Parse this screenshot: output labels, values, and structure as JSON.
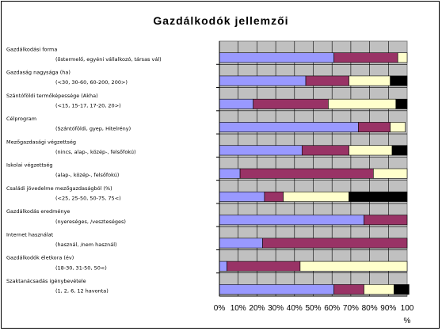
{
  "chart_data": {
    "type": "bar",
    "stacked": true,
    "orientation": "horizontal",
    "title": "Gazdálkodók jellemzői",
    "xlabel": "%",
    "xlim": [
      0,
      100
    ],
    "x_ticks": [
      "0%",
      "10%",
      "20%",
      "30%",
      "40%",
      "50%",
      "60%",
      "70%",
      "80%",
      "90%",
      "100"
    ],
    "grid": true,
    "segment_colors": [
      "#9999ff",
      "#993366",
      "#ffffcc",
      "#000000"
    ],
    "categories": [
      {
        "label": "Gazdálkodási forma",
        "sublabel": "(õstermelő, egyéni vállalkozó, társas vál)",
        "values": [
          61,
          34,
          5,
          0
        ]
      },
      {
        "label": "Gazdaság nagysága (ha)",
        "sublabel": "(<30, 30-60, 60-200, 200>)",
        "values": [
          46,
          23,
          22,
          9
        ]
      },
      {
        "label": "Szántóföldi termőképessége (Akha)",
        "sublabel": "(<15, 15-17, 17-20, 20>)",
        "values": [
          18,
          40,
          36,
          6
        ]
      },
      {
        "label": "Célprogram",
        "sublabel": "(Szántóföldi, gyep, Hitelrény)",
        "values": [
          74,
          17,
          8,
          0
        ]
      },
      {
        "label": "Mezőgazdasági végzettség",
        "sublabel": "(nincs, alap-, közép-, felsőfokú)",
        "values": [
          44,
          25,
          23,
          8
        ]
      },
      {
        "label": "Iskolai végzettség",
        "sublabel": "(alap-, közép-, felsőfokú)",
        "values": [
          11,
          71,
          18,
          0
        ]
      },
      {
        "label": "Családi jövedelme mezőgazdaságból (%)",
        "sublabel": "(<25, 25-50, 50-75, 75<)",
        "values": [
          24,
          10,
          35,
          31
        ]
      },
      {
        "label": "Gazdálkodás eredménye",
        "sublabel": "(nyereséges, /veszteséges)",
        "values": [
          77,
          23,
          0,
          0
        ]
      },
      {
        "label": "Internet használat",
        "sublabel": "(használ, /nem használ)",
        "values": [
          23,
          77,
          0,
          0
        ]
      },
      {
        "label": "Gazdálkodók életkora (év)",
        "sublabel": "(18-30, 31-50, 50<)",
        "values": [
          4,
          39,
          57,
          0
        ]
      },
      {
        "label": "Szaktanácsadás igénybevétele",
        "sublabel": "(1, 2, 6, 12 havonta)",
        "values": [
          61,
          16,
          16,
          8
        ]
      }
    ]
  }
}
